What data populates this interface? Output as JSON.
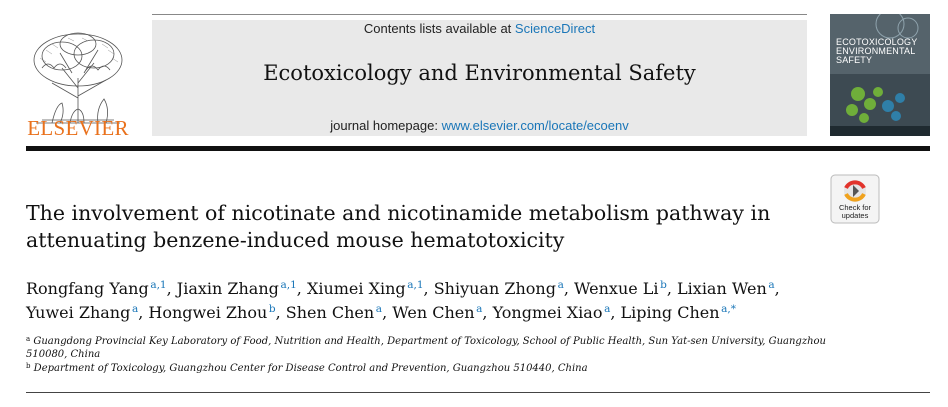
{
  "header": {
    "publisher_logo_icon": "elsevier-tree-icon",
    "publisher_name": "ELSEVIER",
    "contents_prefix": "Contents lists available at",
    "contents_link": "ScienceDirect",
    "journal_title": "Ecotoxicology and Environmental Safety",
    "homepage_prefix": "journal homepage:",
    "homepage_link": "www.elsevier.com/locate/ecoenv",
    "cover_line1": "ECOTOXICOLOGY",
    "cover_line2": "ENVIRONMENTAL",
    "cover_line3": "SAFETY"
  },
  "badge": {
    "icon": "check-for-updates-icon",
    "line1": "Check for",
    "line2": "updates"
  },
  "article": {
    "title_line1": "The involvement of nicotinate and nicotinamide metabolism pathway in",
    "title_line2": "attenuating benzene-induced mouse hematotoxicity",
    "authors": [
      {
        "name": "Rongfang Yang",
        "sup": "a,1"
      },
      {
        "name": "Jiaxin Zhang",
        "sup": "a,1"
      },
      {
        "name": "Xiumei Xing",
        "sup": "a,1"
      },
      {
        "name": "Shiyuan Zhong",
        "sup": "a"
      },
      {
        "name": "Wenxue Li",
        "sup": "b"
      },
      {
        "name": "Lixian Wen",
        "sup": "a"
      },
      {
        "name": "Yuwei Zhang",
        "sup": "a"
      },
      {
        "name": "Hongwei Zhou",
        "sup": "b"
      },
      {
        "name": "Shen Chen",
        "sup": "a"
      },
      {
        "name": "Wen Chen",
        "sup": "a"
      },
      {
        "name": "Yongmei Xiao",
        "sup": "a"
      },
      {
        "name": "Liping Chen",
        "sup": "a,*"
      }
    ],
    "affiliations": [
      {
        "label": "a",
        "text": "Guangdong Provincial Key Laboratory of Food, Nutrition and Health, Department of Toxicology, School of Public Health, Sun Yat-sen University, Guangzhou 510080, China"
      },
      {
        "label": "b",
        "text": "Department of Toxicology, Guangzhou Center for Disease Control and Prevention, Guangzhou 510440, China"
      }
    ]
  },
  "colors": {
    "elsevier_orange": "#e9711c",
    "link_blue": "#1a76b8",
    "banner_grey": "#e9e9e9"
  }
}
